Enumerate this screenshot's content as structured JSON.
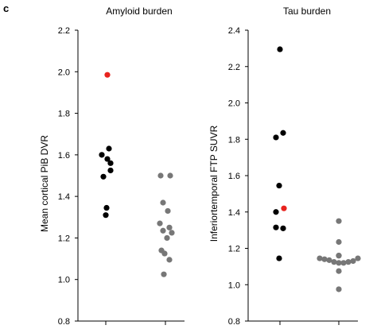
{
  "panel_label": "c",
  "chart_data": [
    {
      "type": "scatter",
      "title": "Amyloid burden",
      "ylabel": "Mean cortical PiB DVR",
      "ylim": [
        0.8,
        2.2
      ],
      "yticks": [
        "0.8",
        "1.0",
        "1.2",
        "1.4",
        "1.6",
        "1.8",
        "2.0",
        "2.2"
      ],
      "grid": false,
      "colors": {
        "black": "#000000",
        "grey": "#777777",
        "red": "#e8231e"
      },
      "groups": [
        {
          "points": [
            {
              "y": 1.985,
              "color": "red"
            },
            {
              "y": 1.63,
              "color": "black"
            },
            {
              "y": 1.6,
              "color": "black"
            },
            {
              "y": 1.58,
              "color": "black"
            },
            {
              "y": 1.56,
              "color": "black"
            },
            {
              "y": 1.525,
              "color": "black"
            },
            {
              "y": 1.495,
              "color": "black"
            },
            {
              "y": 1.345,
              "color": "black"
            },
            {
              "y": 1.31,
              "color": "black"
            }
          ]
        },
        {
          "points": [
            {
              "y": 1.5,
              "color": "grey"
            },
            {
              "y": 1.5,
              "color": "grey"
            },
            {
              "y": 1.37,
              "color": "grey"
            },
            {
              "y": 1.33,
              "color": "grey"
            },
            {
              "y": 1.27,
              "color": "grey"
            },
            {
              "y": 1.25,
              "color": "grey"
            },
            {
              "y": 1.235,
              "color": "grey"
            },
            {
              "y": 1.225,
              "color": "grey"
            },
            {
              "y": 1.2,
              "color": "grey"
            },
            {
              "y": 1.14,
              "color": "grey"
            },
            {
              "y": 1.125,
              "color": "grey"
            },
            {
              "y": 1.095,
              "color": "grey"
            },
            {
              "y": 1.025,
              "color": "grey"
            }
          ]
        }
      ]
    },
    {
      "type": "scatter",
      "title": "Tau burden",
      "ylabel": "Inferiortemporal FTP SUVR",
      "ylim": [
        0.8,
        2.4
      ],
      "yticks": [
        "0.8",
        "1.0",
        "1.2",
        "1.4",
        "1.6",
        "1.8",
        "2.0",
        "2.2",
        "2.4"
      ],
      "grid": false,
      "colors": {
        "black": "#000000",
        "grey": "#777777",
        "red": "#e8231e"
      },
      "groups": [
        {
          "points": [
            {
              "y": 2.295,
              "color": "black"
            },
            {
              "y": 1.835,
              "color": "black"
            },
            {
              "y": 1.81,
              "color": "black"
            },
            {
              "y": 1.545,
              "color": "black"
            },
            {
              "y": 1.42,
              "color": "red"
            },
            {
              "y": 1.4,
              "color": "black"
            },
            {
              "y": 1.315,
              "color": "black"
            },
            {
              "y": 1.31,
              "color": "black"
            },
            {
              "y": 1.145,
              "color": "black"
            }
          ]
        },
        {
          "points": [
            {
              "y": 1.35,
              "color": "grey"
            },
            {
              "y": 1.235,
              "color": "grey"
            },
            {
              "y": 1.16,
              "color": "grey"
            },
            {
              "y": 1.145,
              "color": "grey"
            },
            {
              "y": 1.14,
              "color": "grey"
            },
            {
              "y": 1.135,
              "color": "grey"
            },
            {
              "y": 1.125,
              "color": "grey"
            },
            {
              "y": 1.12,
              "color": "grey"
            },
            {
              "y": 1.12,
              "color": "grey"
            },
            {
              "y": 1.125,
              "color": "grey"
            },
            {
              "y": 1.13,
              "color": "grey"
            },
            {
              "y": 1.145,
              "color": "grey"
            },
            {
              "y": 1.16,
              "color": "grey"
            },
            {
              "y": 1.075,
              "color": "grey"
            },
            {
              "y": 0.975,
              "color": "grey"
            }
          ]
        }
      ]
    }
  ]
}
